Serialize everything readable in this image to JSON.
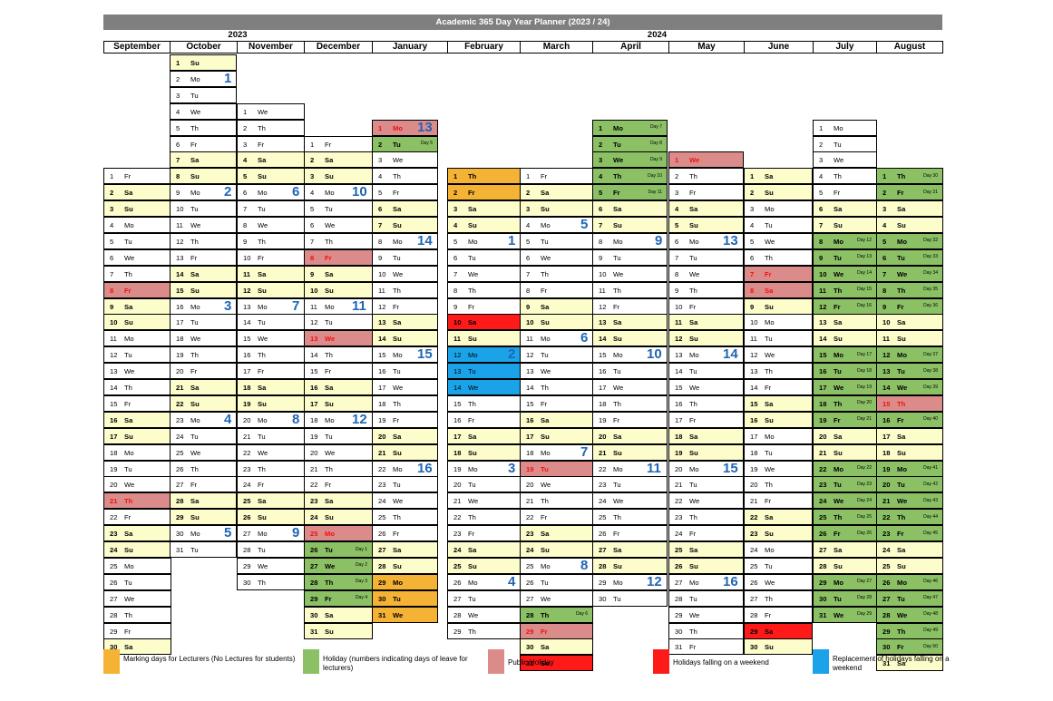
{
  "title": "Academic 365 Day Year Planner (2023 / 24)",
  "years": [
    "2023",
    "2024"
  ],
  "colors": {
    "marking": "#f5b335",
    "holiday": "#8cc065",
    "public": "#dc8b8b",
    "weekend_hol": "#ff1a1a",
    "replacement": "#1aa3e8",
    "weekend": "#fdfccb",
    "weekno": "#1f66b3"
  },
  "months": [
    {
      "name": "September",
      "start": 5,
      "days": 30
    },
    {
      "name": "October",
      "start": 0,
      "days": 31
    },
    {
      "name": "November",
      "start": 3,
      "days": 30
    },
    {
      "name": "December",
      "start": 5,
      "days": 31
    },
    {
      "name": "January",
      "start": 1,
      "days": 31
    },
    {
      "name": "February",
      "start": 4,
      "days": 29
    },
    {
      "name": "March",
      "start": 5,
      "days": 31
    },
    {
      "name": "April",
      "start": 1,
      "days": 30
    },
    {
      "name": "May",
      "start": 3,
      "days": 31
    },
    {
      "name": "June",
      "start": 6,
      "days": 30
    },
    {
      "name": "July",
      "start": 1,
      "days": 31
    },
    {
      "name": "August",
      "start": 4,
      "days": 31
    }
  ],
  "weekday_abbrev": [
    "Su",
    "Mo",
    "Tu",
    "We",
    "Th",
    "Fr",
    "Sa"
  ],
  "highlights": [
    {
      "m": 0,
      "d": 8,
      "c": "public"
    },
    {
      "m": 0,
      "d": 21,
      "c": "public"
    },
    {
      "m": 2,
      "d": 0,
      "c": "none"
    },
    {
      "m": 3,
      "d": 8,
      "c": "public"
    },
    {
      "m": 3,
      "d": 13,
      "c": "public"
    },
    {
      "m": 3,
      "d": 25,
      "c": "public"
    },
    {
      "m": 3,
      "d": 26,
      "c": "holiday",
      "t": "Day 1"
    },
    {
      "m": 3,
      "d": 27,
      "c": "holiday",
      "t": "Day 2"
    },
    {
      "m": 3,
      "d": 28,
      "c": "holiday",
      "t": "Day 3"
    },
    {
      "m": 3,
      "d": 29,
      "c": "holiday",
      "t": "Day 4"
    },
    {
      "m": 4,
      "d": 1,
      "c": "public"
    },
    {
      "m": 4,
      "d": 2,
      "c": "holiday",
      "t": "Day 5"
    },
    {
      "m": 4,
      "d": 29,
      "c": "marking"
    },
    {
      "m": 4,
      "d": 30,
      "c": "marking"
    },
    {
      "m": 4,
      "d": 31,
      "c": "marking"
    },
    {
      "m": 5,
      "d": 1,
      "c": "marking"
    },
    {
      "m": 5,
      "d": 2,
      "c": "marking"
    },
    {
      "m": 5,
      "d": 10,
      "c": "weekend_hol"
    },
    {
      "m": 5,
      "d": 12,
      "c": "replacement"
    },
    {
      "m": 5,
      "d": 13,
      "c": "replacement"
    },
    {
      "m": 5,
      "d": 14,
      "c": "replacement"
    },
    {
      "m": 6,
      "d": 19,
      "c": "public"
    },
    {
      "m": 6,
      "d": 28,
      "c": "holiday",
      "t": "Day 6"
    },
    {
      "m": 6,
      "d": 29,
      "c": "public"
    },
    {
      "m": 6,
      "d": 31,
      "c": "weekend_hol"
    },
    {
      "m": 7,
      "d": 1,
      "c": "holiday",
      "t": "Day 7"
    },
    {
      "m": 7,
      "d": 2,
      "c": "holiday",
      "t": "Day 8"
    },
    {
      "m": 7,
      "d": 3,
      "c": "holiday",
      "t": "Day 9"
    },
    {
      "m": 7,
      "d": 4,
      "c": "holiday",
      "t": "Day 10"
    },
    {
      "m": 7,
      "d": 5,
      "c": "holiday",
      "t": "Day 11"
    },
    {
      "m": 8,
      "d": 1,
      "c": "public"
    },
    {
      "m": 9,
      "d": 7,
      "c": "public"
    },
    {
      "m": 9,
      "d": 8,
      "c": "public"
    },
    {
      "m": 9,
      "d": 29,
      "c": "weekend_hol"
    },
    {
      "m": 10,
      "d": 8,
      "c": "holiday",
      "t": "Day 12"
    },
    {
      "m": 10,
      "d": 9,
      "c": "holiday",
      "t": "Day 13"
    },
    {
      "m": 10,
      "d": 10,
      "c": "holiday",
      "t": "Day 14"
    },
    {
      "m": 10,
      "d": 11,
      "c": "holiday",
      "t": "Day 15"
    },
    {
      "m": 10,
      "d": 12,
      "c": "holiday",
      "t": "Day 16"
    },
    {
      "m": 10,
      "d": 15,
      "c": "holiday",
      "t": "Day 17"
    },
    {
      "m": 10,
      "d": 16,
      "c": "holiday",
      "t": "Day 18"
    },
    {
      "m": 10,
      "d": 17,
      "c": "holiday",
      "t": "Day 19"
    },
    {
      "m": 10,
      "d": 18,
      "c": "holiday",
      "t": "Day 20"
    },
    {
      "m": 10,
      "d": 19,
      "c": "holiday",
      "t": "Day 21"
    },
    {
      "m": 10,
      "d": 22,
      "c": "holiday",
      "t": "Day 22"
    },
    {
      "m": 10,
      "d": 23,
      "c": "holiday",
      "t": "Day 23"
    },
    {
      "m": 10,
      "d": 24,
      "c": "holiday",
      "t": "Day 24"
    },
    {
      "m": 10,
      "d": 25,
      "c": "holiday",
      "t": "Day 25"
    },
    {
      "m": 10,
      "d": 26,
      "c": "holiday",
      "t": "Day 26"
    },
    {
      "m": 10,
      "d": 29,
      "c": "holiday",
      "t": "Day 27"
    },
    {
      "m": 10,
      "d": 30,
      "c": "holiday",
      "t": "Day 28"
    },
    {
      "m": 10,
      "d": 31,
      "c": "holiday",
      "t": "Day 29"
    },
    {
      "m": 11,
      "d": 1,
      "c": "holiday",
      "t": "Day 30"
    },
    {
      "m": 11,
      "d": 2,
      "c": "holiday",
      "t": "Day 31"
    },
    {
      "m": 11,
      "d": 5,
      "c": "holiday",
      "t": "Day 32"
    },
    {
      "m": 11,
      "d": 6,
      "c": "holiday",
      "t": "Day 33"
    },
    {
      "m": 11,
      "d": 7,
      "c": "holiday",
      "t": "Day 34"
    },
    {
      "m": 11,
      "d": 8,
      "c": "holiday",
      "t": "Day 35"
    },
    {
      "m": 11,
      "d": 9,
      "c": "holiday",
      "t": "Day 36"
    },
    {
      "m": 11,
      "d": 12,
      "c": "holiday",
      "t": "Day 37"
    },
    {
      "m": 11,
      "d": 13,
      "c": "holiday",
      "t": "Day 38"
    },
    {
      "m": 11,
      "d": 14,
      "c": "holiday",
      "t": "Day 39"
    },
    {
      "m": 11,
      "d": 15,
      "c": "public"
    },
    {
      "m": 11,
      "d": 16,
      "c": "holiday",
      "t": "Day 40"
    },
    {
      "m": 11,
      "d": 19,
      "c": "holiday",
      "t": "Day 41"
    },
    {
      "m": 11,
      "d": 20,
      "c": "holiday",
      "t": "Day 42"
    },
    {
      "m": 11,
      "d": 21,
      "c": "holiday",
      "t": "Day 43"
    },
    {
      "m": 11,
      "d": 22,
      "c": "holiday",
      "t": "Day 44"
    },
    {
      "m": 11,
      "d": 23,
      "c": "holiday",
      "t": "Day 45"
    },
    {
      "m": 11,
      "d": 26,
      "c": "holiday",
      "t": "Day 46"
    },
    {
      "m": 11,
      "d": 27,
      "c": "holiday",
      "t": "Day 47"
    },
    {
      "m": 11,
      "d": 28,
      "c": "holiday",
      "t": "Day 48"
    },
    {
      "m": 11,
      "d": 29,
      "c": "holiday",
      "t": "Day 49"
    },
    {
      "m": 11,
      "d": 30,
      "c": "holiday",
      "t": "Day 50"
    }
  ],
  "week_numbers": [
    {
      "m": 1,
      "d": 2,
      "n": "1"
    },
    {
      "m": 1,
      "d": 9,
      "n": "2"
    },
    {
      "m": 1,
      "d": 16,
      "n": "3"
    },
    {
      "m": 1,
      "d": 23,
      "n": "4"
    },
    {
      "m": 1,
      "d": 30,
      "n": "5"
    },
    {
      "m": 2,
      "d": 6,
      "n": "6"
    },
    {
      "m": 2,
      "d": 13,
      "n": "7"
    },
    {
      "m": 2,
      "d": 20,
      "n": "8"
    },
    {
      "m": 2,
      "d": 27,
      "n": "9"
    },
    {
      "m": 3,
      "d": 4,
      "n": "10"
    },
    {
      "m": 3,
      "d": 11,
      "n": "11"
    },
    {
      "m": 3,
      "d": 18,
      "n": "12"
    },
    {
      "m": 4,
      "d": 1,
      "n": "13"
    },
    {
      "m": 4,
      "d": 8,
      "n": "14"
    },
    {
      "m": 4,
      "d": 15,
      "n": "15"
    },
    {
      "m": 4,
      "d": 22,
      "n": "16"
    },
    {
      "m": 5,
      "d": 5,
      "n": "1"
    },
    {
      "m": 5,
      "d": 12,
      "n": "2"
    },
    {
      "m": 5,
      "d": 19,
      "n": "3"
    },
    {
      "m": 5,
      "d": 26,
      "n": "4"
    },
    {
      "m": 6,
      "d": 4,
      "n": "5"
    },
    {
      "m": 6,
      "d": 11,
      "n": "6"
    },
    {
      "m": 6,
      "d": 18,
      "n": "7"
    },
    {
      "m": 6,
      "d": 25,
      "n": "8"
    },
    {
      "m": 7,
      "d": 8,
      "n": "9"
    },
    {
      "m": 7,
      "d": 15,
      "n": "10"
    },
    {
      "m": 7,
      "d": 22,
      "n": "11"
    },
    {
      "m": 7,
      "d": 29,
      "n": "12"
    },
    {
      "m": 8,
      "d": 6,
      "n": "13"
    },
    {
      "m": 8,
      "d": 13,
      "n": "14"
    },
    {
      "m": 8,
      "d": 20,
      "n": "15"
    },
    {
      "m": 8,
      "d": 27,
      "n": "16"
    }
  ],
  "legend": [
    {
      "color": "marking",
      "text": "Marking days for Lecturers (No Lectures for students)"
    },
    {
      "color": "holiday",
      "text": "Holiday (numbers indicating days of leave for lecturers)"
    },
    {
      "color": "public",
      "text": "Public Holiday"
    },
    {
      "color": "weekend_hol",
      "text": "Holidays falling on a weekend"
    },
    {
      "color": "replacement",
      "text": "Replacement of holidays falling on a weekend"
    }
  ]
}
